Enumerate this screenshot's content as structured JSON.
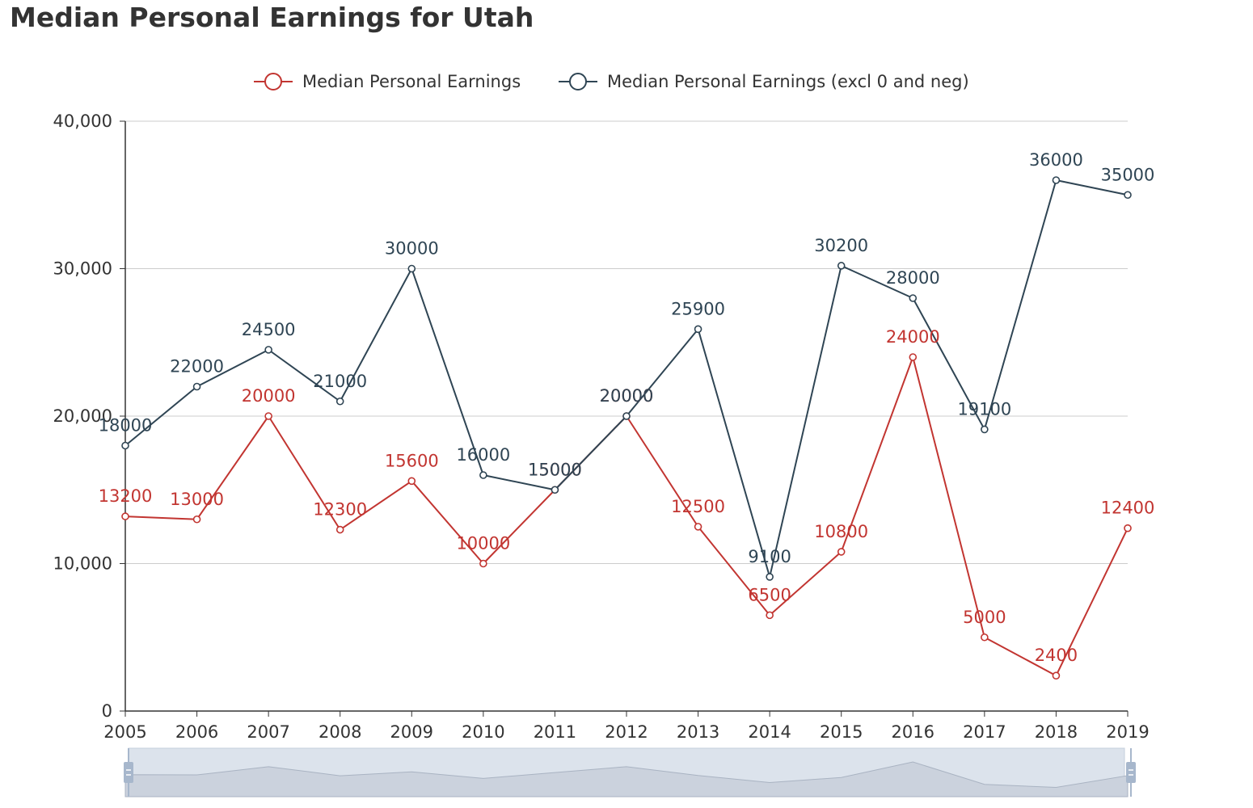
{
  "chart_data": {
    "type": "line",
    "title": "Median Personal Earnings for Utah",
    "x": [
      "2005",
      "2006",
      "2007",
      "2008",
      "2009",
      "2010",
      "2011",
      "2012",
      "2013",
      "2014",
      "2015",
      "2016",
      "2017",
      "2018",
      "2019"
    ],
    "y_ticks": [
      "0",
      "10,000",
      "20,000",
      "30,000",
      "40,000"
    ],
    "ylim": [
      0,
      40000
    ],
    "grid": true,
    "legend_position": "top-center",
    "series": [
      {
        "name": "Median Personal Earnings",
        "color": "#c23531",
        "values": [
          13200,
          13000,
          20000,
          12300,
          15600,
          10000,
          15000,
          20000,
          12500,
          6500,
          10800,
          24000,
          5000,
          2400,
          12400
        ],
        "labels": [
          "13200",
          "13000",
          "20000",
          "12300",
          "15600",
          "10000",
          "15000",
          "20000",
          "12500",
          "6500",
          "10800",
          "24000",
          "5000",
          "2400",
          "12400"
        ]
      },
      {
        "name": "Median Personal Earnings (excl 0 and neg)",
        "color": "#2f4554",
        "values": [
          18000,
          22000,
          24500,
          21000,
          30000,
          16000,
          15000,
          20000,
          25900,
          9100,
          30200,
          28000,
          19100,
          36000,
          35000
        ],
        "labels": [
          "18000",
          "22000",
          "24500",
          "21000",
          "30000",
          "16000",
          "15000",
          "20000",
          "25900",
          "9100",
          "30200",
          "28000",
          "19100",
          "36000",
          "35000"
        ]
      }
    ],
    "data_zoom": {
      "start": 0,
      "end": 100
    }
  }
}
